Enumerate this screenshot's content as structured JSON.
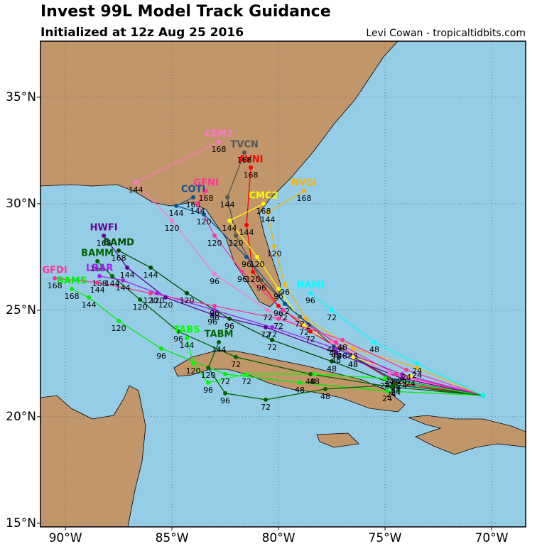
{
  "header": {
    "title": "Invest 99L Model Track Guidance",
    "subtitle": "Initialized at 12z Aug 25 2016",
    "credit": "Levi Cowan - tropicaltidbits.com"
  },
  "map": {
    "xlim": [
      -91.17,
      -68.4
    ],
    "ylim": [
      14.83,
      37.63
    ],
    "xticks": [
      {
        "value": -90,
        "label": "90°W"
      },
      {
        "value": -85,
        "label": "85°W"
      },
      {
        "value": -80,
        "label": "80°W"
      },
      {
        "value": -75,
        "label": "75°W"
      },
      {
        "value": -70,
        "label": "70°W"
      }
    ],
    "yticks": [
      {
        "value": 15,
        "label": "15°N"
      },
      {
        "value": 20,
        "label": "20°N"
      },
      {
        "value": 25,
        "label": "25°N"
      },
      {
        "value": 30,
        "label": "30°N"
      },
      {
        "value": 35,
        "label": "35°N"
      }
    ],
    "grid": true,
    "tracks": [
      {
        "name": "AVNI",
        "color": "#ff0000",
        "lon": [
          -70.4,
          -74.5,
          -76.5,
          -78.5,
          -80.0,
          -81.2,
          -81.5,
          -81.3
        ],
        "lat": [
          21.0,
          21.6,
          22.8,
          24.0,
          25.2,
          26.8,
          29.0,
          31.7
        ],
        "hours": [
          null,
          24,
          48,
          72,
          96,
          120,
          144,
          168
        ]
      },
      {
        "name": "TVCN",
        "color": "#555555",
        "lon": [
          -70.4,
          -74.8,
          -77.0,
          -79.0,
          -80.8,
          -82.0,
          -82.4,
          -81.6
        ],
        "lat": [
          21.0,
          21.8,
          23.2,
          24.7,
          26.4,
          28.5,
          30.3,
          32.4
        ],
        "hours": [
          null,
          24,
          48,
          72,
          96,
          120,
          144,
          168
        ]
      },
      {
        "name": "CEM2",
        "color": "#ff77cc",
        "lon": [
          -70.4,
          -74.8,
          -77.5,
          -80.5,
          -83.0,
          -85.0,
          -86.7,
          -82.8
        ],
        "lat": [
          21.0,
          22.0,
          23.5,
          25.0,
          26.7,
          29.2,
          31.0,
          32.9
        ],
        "hours": [
          null,
          24,
          48,
          72,
          96,
          120,
          144,
          168
        ]
      },
      {
        "name": "NVGI",
        "color": "#ffb000",
        "lon": [
          -70.4,
          -73.5,
          -76.5,
          -78.7,
          -79.7,
          -80.2,
          -80.5,
          -78.8
        ],
        "lat": [
          21.0,
          22.3,
          23.2,
          24.6,
          26.2,
          28.0,
          29.6,
          30.6
        ],
        "hours": [
          null,
          24,
          48,
          72,
          96,
          120,
          144,
          168
        ]
      },
      {
        "name": "CMC2",
        "color": "#ffff00",
        "lon": [
          -70.4,
          -73.8,
          -76.5,
          -78.8,
          -80.0,
          -81.0,
          -82.3,
          -80.7
        ],
        "lat": [
          21.0,
          21.9,
          22.8,
          24.3,
          26.0,
          27.5,
          29.2,
          30.0
        ],
        "hours": [
          null,
          24,
          48,
          72,
          96,
          120,
          144,
          168
        ]
      },
      {
        "name": "COTI",
        "color": "#0b5394",
        "lon": [
          -70.4,
          -74.5,
          -77.4,
          -79.7,
          -81.5,
          -83.5,
          -84.8,
          -84.0
        ],
        "lat": [
          21.0,
          21.7,
          23.3,
          25.3,
          27.5,
          29.5,
          29.9,
          30.3
        ],
        "hours": [
          null,
          24,
          48,
          72,
          96,
          120,
          144,
          168
        ]
      },
      {
        "name": "GFNI",
        "color": "#ff3399",
        "lon": [
          -70.4,
          -74.5,
          -77.3,
          -79.8,
          -81.7,
          -83.0,
          -83.8,
          -83.4
        ],
        "lat": [
          21.0,
          22.0,
          23.5,
          25.0,
          26.8,
          28.5,
          30.0,
          30.6
        ],
        "hours": [
          null,
          24,
          48,
          72,
          96,
          120,
          144,
          168
        ]
      },
      {
        "name": "HWFI",
        "color": "#660099",
        "lon": [
          -70.4,
          -74.2,
          -77.3,
          -80.6,
          -83.1,
          -85.3,
          -87.1,
          -88.2
        ],
        "lat": [
          21.0,
          21.8,
          23.0,
          24.2,
          24.8,
          25.6,
          27.0,
          28.5
        ],
        "hours": [
          null,
          24,
          48,
          72,
          96,
          120,
          144,
          168
        ]
      },
      {
        "name": "BAMD",
        "color": "#004d00",
        "lon": [
          -70.4,
          -74.5,
          -77.5,
          -80.3,
          -82.3,
          -84.3,
          -86.0,
          -87.5
        ],
        "lat": [
          21.0,
          21.5,
          22.6,
          23.6,
          24.6,
          25.8,
          27.0,
          27.8
        ],
        "hours": [
          null,
          24,
          48,
          72,
          96,
          120,
          144,
          168
        ]
      },
      {
        "name": "BAMM",
        "color": "#006400",
        "lon": [
          -70.4,
          -74.7,
          -78.5,
          -82.0,
          -84.7,
          -86.5,
          -87.8,
          -88.5
        ],
        "lat": [
          21.0,
          21.4,
          22.0,
          22.8,
          24.0,
          25.5,
          26.6,
          27.3
        ],
        "hours": [
          null,
          24,
          48,
          72,
          96,
          120,
          144,
          168
        ]
      },
      {
        "name": "BAMS",
        "color": "#00ee00",
        "lon": [
          -70.4,
          -74.9,
          -79.0,
          -82.5,
          -85.5,
          -87.5,
          -88.9,
          -89.7
        ],
        "lat": [
          21.0,
          21.2,
          21.6,
          22.0,
          23.2,
          24.5,
          25.6,
          26.0
        ],
        "hours": [
          null,
          24,
          48,
          72,
          96,
          120,
          144,
          168
        ]
      },
      {
        "name": "LBAR",
        "color": "#a020f0",
        "lon": [
          -70.4,
          -74.2,
          -77.3,
          -80.3,
          -83.0,
          -85.7,
          -87.3,
          -88.4
        ],
        "lat": [
          21.0,
          22.0,
          23.2,
          24.2,
          25.0,
          25.8,
          26.4,
          26.6
        ],
        "hours": [
          null,
          24,
          48,
          72,
          96,
          120,
          144,
          168
        ]
      },
      {
        "name": "GFDI",
        "color": "#ff3399",
        "lon": [
          -70.4,
          -74.0,
          -77.0,
          -80.0,
          -83.0,
          -86.0,
          -88.5,
          -90.5
        ],
        "lat": [
          21.0,
          22.2,
          23.6,
          24.6,
          25.2,
          25.8,
          26.3,
          26.5
        ],
        "hours": [
          null,
          24,
          48,
          72,
          96,
          120,
          144,
          168
        ]
      },
      {
        "name": "TABS",
        "color": "#00ff00",
        "lon": [
          -70.4,
          -75.0,
          -78.3,
          -81.5,
          -83.3,
          -84.0,
          -84.3
        ],
        "lat": [
          21.0,
          21.8,
          22.0,
          22.0,
          21.6,
          22.5,
          23.7
        ],
        "hours": [
          null,
          24,
          48,
          72,
          96,
          120,
          144
        ]
      },
      {
        "name": "TABM",
        "color": "#006400",
        "lon": [
          -70.4,
          -74.5,
          -77.8,
          -80.6,
          -82.5,
          -83.3,
          -82.8
        ],
        "lat": [
          21.0,
          21.5,
          21.3,
          20.8,
          21.1,
          22.3,
          23.5
        ],
        "hours": [
          null,
          24,
          48,
          72,
          96,
          120,
          144
        ]
      },
      {
        "name": "NAMI",
        "color": "#00ffff",
        "lon": [
          -70.4,
          -73.5,
          -75.5,
          -77.5,
          -78.5
        ],
        "lat": [
          21.0,
          22.5,
          23.5,
          25.0,
          25.8
        ],
        "hours": [
          null,
          24,
          48,
          72,
          96
        ]
      }
    ]
  }
}
